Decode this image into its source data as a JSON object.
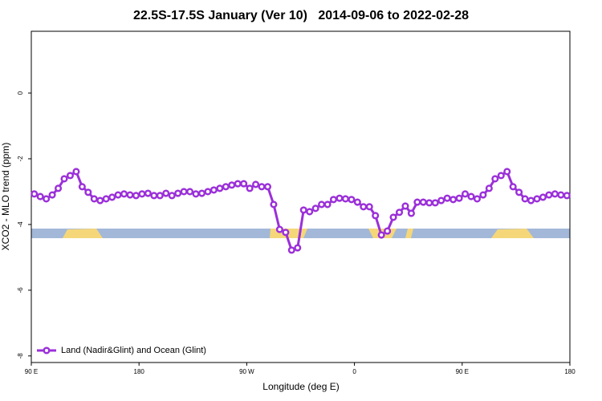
{
  "chart_data": {
    "type": "line",
    "title": "22.5S-17.5S January (Ver 10)   2014-09-06 to 2022-02-28",
    "x_label": "Longitude (deg E)",
    "y_label": "XCO2 - MLO trend (ppm)",
    "xlim": [
      90,
      540
    ],
    "ylim": [
      -8.2,
      1.88
    ],
    "xticks": [
      {
        "value": 90,
        "label": "90 E"
      },
      180,
      {
        "value": 270,
        "label": "90 W"
      },
      {
        "value": 360,
        "label": "0"
      },
      {
        "value": 450,
        "label": "90 E"
      },
      {
        "value": 540,
        "label": "180"
      }
    ],
    "yticks": [
      0,
      -2,
      -4,
      -6,
      -8
    ],
    "legend": "bottom-left",
    "x": [
      92.5,
      97.5,
      102.5,
      107.5,
      112.5,
      117.5,
      122.5,
      127.5,
      132.5,
      137.5,
      142.5,
      147.5,
      152.5,
      157.5,
      162.5,
      167.5,
      172.5,
      177.5,
      182.5,
      187.5,
      192.5,
      197.5,
      202.5,
      207.5,
      212.5,
      217.5,
      222.5,
      227.5,
      232.5,
      237.5,
      242.5,
      247.5,
      252.5,
      257.5,
      262.5,
      267.5,
      272.5,
      277.5,
      282.5,
      287.5,
      292.5,
      297.5,
      302.5,
      307.5,
      312.5,
      317.5,
      322.5,
      327.5,
      332.5,
      337.5,
      342.5,
      347.5,
      352.5,
      357.5,
      362.5,
      367.5,
      372.5,
      377.5,
      382.5,
      387.5,
      392.5,
      397.5,
      402.5,
      407.5,
      412.5,
      417.5,
      422.5,
      427.5,
      432.5,
      437.5,
      442.5,
      447.5,
      452.5,
      457.5,
      462.5,
      467.5,
      472.5,
      477.5,
      482.5,
      487.5,
      492.5,
      497.5,
      502.5,
      507.5,
      512.5,
      517.5,
      522.5,
      527.5,
      532.5,
      537.5
    ],
    "series": [
      {
        "name": "Land (Nadir&Glint) and Ocean (Glint)",
        "color": "#9b30d9",
        "values": [
          -3.07,
          -3.15,
          -3.22,
          -3.1,
          -2.9,
          -2.61,
          -2.51,
          -2.39,
          -2.85,
          -3.02,
          -3.22,
          -3.27,
          -3.22,
          -3.17,
          -3.1,
          -3.07,
          -3.1,
          -3.12,
          -3.07,
          -3.05,
          -3.12,
          -3.12,
          -3.05,
          -3.12,
          -3.05,
          -3.0,
          -3.0,
          -3.07,
          -3.05,
          -3.0,
          -2.95,
          -2.9,
          -2.85,
          -2.8,
          -2.76,
          -2.76,
          -2.9,
          -2.78,
          -2.85,
          -2.85,
          -3.39,
          -4.15,
          -4.24,
          -4.78,
          -4.71,
          -3.56,
          -3.61,
          -3.51,
          -3.39,
          -3.39,
          -3.24,
          -3.2,
          -3.22,
          -3.24,
          -3.32,
          -3.46,
          -3.46,
          -3.73,
          -4.32,
          -4.2,
          -3.78,
          -3.63,
          -3.44,
          -3.66,
          -3.32,
          -3.32,
          -3.34,
          -3.34,
          -3.27,
          -3.2,
          -3.24,
          -3.2,
          -3.07,
          -3.15,
          -3.22,
          -3.1,
          -2.9,
          -2.61,
          -2.51,
          -2.39,
          -2.85,
          -3.02,
          -3.22,
          -3.27,
          -3.22,
          -3.17,
          -3.1,
          -3.07,
          -3.1,
          -3.12
        ]
      }
    ]
  }
}
